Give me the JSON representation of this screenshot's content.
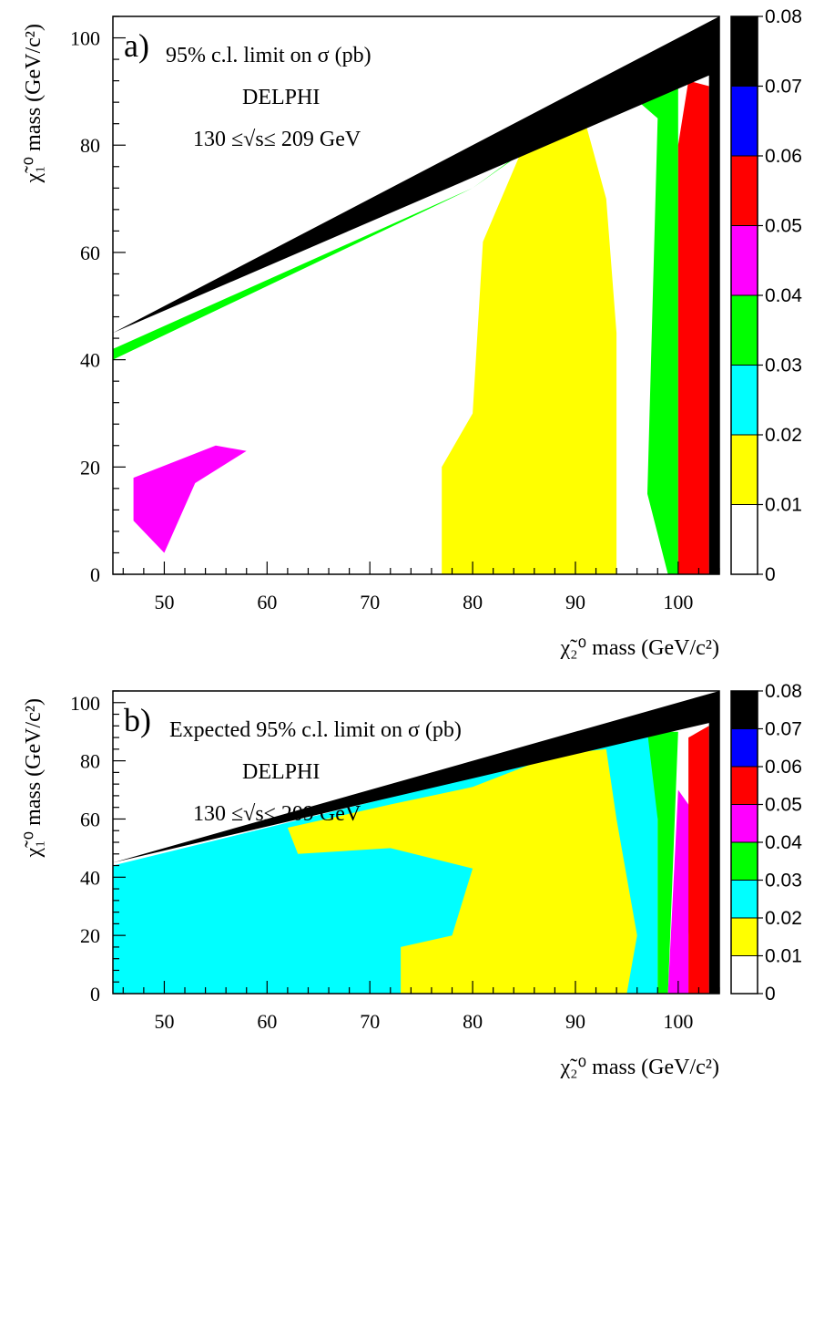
{
  "chart_data": [
    {
      "type": "heatmap",
      "panel_label": "a)",
      "annotations": [
        "95% c.l. limit on σ (pb)",
        "DELPHI",
        "130 ≤√s≤ 209 GeV"
      ],
      "xlabel": "χ̃₂⁰ mass (GeV/c²)",
      "ylabel": "χ̃₁⁰ mass (GeV/c²)",
      "xlim": [
        45,
        104
      ],
      "ylim": [
        0,
        104
      ],
      "xticks": [
        "50",
        "60",
        "70",
        "80",
        "90",
        "100"
      ],
      "yticks": [
        "0",
        "20",
        "40",
        "60",
        "80",
        "100"
      ],
      "colorbar": {
        "ticks": [
          "0.08",
          "0.07",
          "0.06",
          "0.05",
          "0.04",
          "0.03",
          "0.02",
          "0.01",
          "0"
        ],
        "bins": [
          {
            "range": [
              0.07,
              0.08
            ],
            "color": "#000000"
          },
          {
            "range": [
              0.06,
              0.07
            ],
            "color": "#0000ff"
          },
          {
            "range": [
              0.05,
              0.06
            ],
            "color": "#ff0000"
          },
          {
            "range": [
              0.04,
              0.05
            ],
            "color": "#ff00ff"
          },
          {
            "range": [
              0.03,
              0.04
            ],
            "color": "#00ff00"
          },
          {
            "range": [
              0.02,
              0.03
            ],
            "color": "#00ffff"
          },
          {
            "range": [
              0.01,
              0.02
            ],
            "color": "#ffff00"
          },
          {
            "range": [
              0.0,
              0.01
            ],
            "color": "#ffffff"
          }
        ]
      },
      "regions": [
        {
          "level": 0.015,
          "desc": "yellow core",
          "polygon": [
            [
              77,
              0
            ],
            [
              94,
              0
            ],
            [
              94,
              45
            ],
            [
              93,
              70
            ],
            [
              91,
              84
            ],
            [
              89,
              86
            ],
            [
              85,
              80
            ],
            [
              81,
              62
            ],
            [
              80,
              30
            ],
            [
              77,
              20
            ]
          ]
        },
        {
          "level": 0.035,
          "desc": "green diagonal band",
          "polygon": [
            [
              45,
              40
            ],
            [
              80,
              72
            ],
            [
              90,
              86
            ],
            [
              95,
              90
            ],
            [
              98,
              85
            ],
            [
              97,
              15
            ],
            [
              99,
              0
            ],
            [
              100,
              0
            ],
            [
              100,
              91
            ],
            [
              94,
              91
            ],
            [
              80,
              72
            ],
            [
              45,
              42
            ]
          ]
        },
        {
          "level": 0.045,
          "desc": "magenta low-mass blob",
          "polygon": [
            [
              47,
              10
            ],
            [
              50,
              4
            ],
            [
              53,
              17
            ],
            [
              58,
              23
            ],
            [
              55,
              24
            ],
            [
              47,
              18
            ]
          ]
        },
        {
          "level": 0.055,
          "desc": "red right edge",
          "polygon": [
            [
              100,
              0
            ],
            [
              103,
              0
            ],
            [
              103,
              91
            ],
            [
              101,
              92
            ],
            [
              100,
              80
            ]
          ]
        },
        {
          "level": 0.075,
          "desc": "black kinematic edge",
          "polygon": [
            [
              45,
              45
            ],
            [
              104,
              104
            ],
            [
              104,
              0
            ],
            [
              103,
              0
            ],
            [
              103,
              93
            ]
          ]
        }
      ]
    },
    {
      "type": "heatmap",
      "panel_label": "b)",
      "annotations": [
        "Expected 95% c.l. limit on σ (pb)",
        "DELPHI",
        "130 ≤√s≤ 209 GeV"
      ],
      "xlabel": "χ̃₂⁰ mass (GeV/c²)",
      "ylabel": "χ̃₁⁰ mass (GeV/c²)",
      "xlim": [
        45,
        104
      ],
      "ylim": [
        0,
        104
      ],
      "xticks": [
        "50",
        "60",
        "70",
        "80",
        "90",
        "100"
      ],
      "yticks": [
        "0",
        "20",
        "40",
        "60",
        "80",
        "100"
      ],
      "colorbar": {
        "ticks": [
          "0.08",
          "0.07",
          "0.06",
          "0.05",
          "0.04",
          "0.03",
          "0.02",
          "0.01",
          "0"
        ],
        "bins": [
          {
            "range": [
              0.07,
              0.08
            ],
            "color": "#000000"
          },
          {
            "range": [
              0.06,
              0.07
            ],
            "color": "#0000ff"
          },
          {
            "range": [
              0.05,
              0.06
            ],
            "color": "#ff0000"
          },
          {
            "range": [
              0.04,
              0.05
            ],
            "color": "#ff00ff"
          },
          {
            "range": [
              0.03,
              0.04
            ],
            "color": "#00ff00"
          },
          {
            "range": [
              0.02,
              0.03
            ],
            "color": "#00ffff"
          },
          {
            "range": [
              0.01,
              0.02
            ],
            "color": "#ffff00"
          },
          {
            "range": [
              0.0,
              0.01
            ],
            "color": "#ffffff"
          }
        ]
      },
      "regions": [
        {
          "level": 0.025,
          "desc": "cyan background",
          "polygon": [
            [
              45,
              0
            ],
            [
              98,
              0
            ],
            [
              98,
              90
            ],
            [
              45,
              44
            ]
          ]
        },
        {
          "level": 0.015,
          "desc": "yellow wedge",
          "polygon": [
            [
              73,
              0
            ],
            [
              95,
              0
            ],
            [
              96,
              20
            ],
            [
              94,
              60
            ],
            [
              93,
              84
            ],
            [
              88,
              82
            ],
            [
              80,
              71
            ],
            [
              72,
              65
            ],
            [
              62,
              57
            ],
            [
              63,
              48
            ],
            [
              72,
              50
            ],
            [
              80,
              43
            ],
            [
              78,
              20
            ],
            [
              73,
              16
            ]
          ]
        },
        {
          "level": 0.035,
          "desc": "green right strip",
          "polygon": [
            [
              98,
              0
            ],
            [
              99,
              0
            ],
            [
              100,
              90
            ],
            [
              97,
              90
            ],
            [
              98,
              60
            ]
          ]
        },
        {
          "level": 0.045,
          "desc": "magenta right strip",
          "polygon": [
            [
              99,
              0
            ],
            [
              101,
              0
            ],
            [
              101,
              20
            ],
            [
              102,
              60
            ],
            [
              100,
              70
            ]
          ]
        },
        {
          "level": 0.055,
          "desc": "red right edge",
          "polygon": [
            [
              101,
              0
            ],
            [
              103,
              0
            ],
            [
              103,
              92
            ],
            [
              101,
              88
            ],
            [
              101,
              20
            ]
          ]
        },
        {
          "level": 0.075,
          "desc": "black kinematic edge",
          "polygon": [
            [
              45,
              45
            ],
            [
              104,
              104
            ],
            [
              104,
              0
            ],
            [
              103,
              0
            ],
            [
              103,
              93
            ]
          ]
        }
      ]
    }
  ]
}
